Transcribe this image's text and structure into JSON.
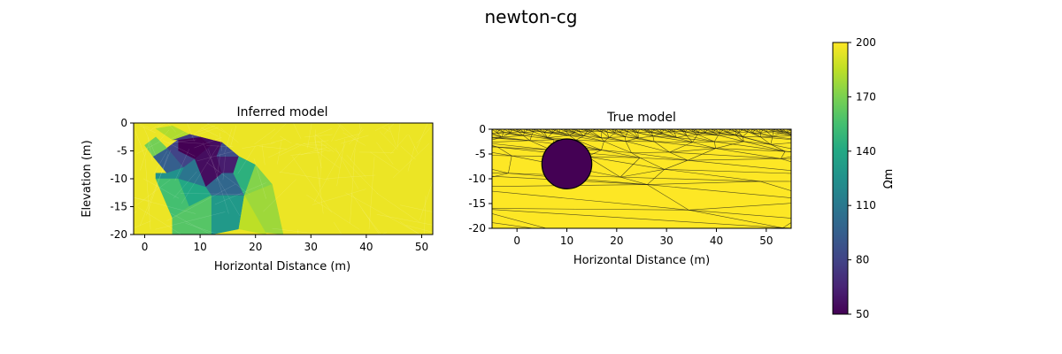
{
  "figure": {
    "suptitle": "newton-cg"
  },
  "chart_data": [
    {
      "type": "heatmap",
      "title": "Inferred model",
      "xlabel": "Horizontal Distance (m)",
      "ylabel": "Elevation (m)",
      "xlim": [
        -2,
        52
      ],
      "ylim": [
        -20,
        0
      ],
      "xticks": [
        0,
        10,
        20,
        30,
        40,
        50
      ],
      "yticks": [
        0,
        -5,
        -10,
        -15,
        -20
      ],
      "background_value": 196,
      "cells": [
        {
          "value": 50,
          "points": [
            [
              6,
              -3
            ],
            [
              10,
              -2.5
            ],
            [
              12,
              -4
            ],
            [
              9,
              -6.5
            ],
            [
              6,
              -5
            ]
          ]
        },
        {
          "value": 55,
          "points": [
            [
              10,
              -2.5
            ],
            [
              14,
              -3.5
            ],
            [
              13,
              -6
            ],
            [
              12,
              -4
            ]
          ]
        },
        {
          "value": 55,
          "points": [
            [
              9,
              -6.5
            ],
            [
              12,
              -4
            ],
            [
              13,
              -6
            ],
            [
              14,
              -9
            ],
            [
              11,
              -11.5
            ]
          ]
        },
        {
          "value": 62,
          "points": [
            [
              13,
              -6
            ],
            [
              17,
              -6
            ],
            [
              16,
              -9
            ],
            [
              14,
              -9
            ]
          ]
        },
        {
          "value": 75,
          "points": [
            [
              5,
              -3
            ],
            [
              8,
              -2
            ],
            [
              10,
              -2.5
            ],
            [
              6,
              -3
            ]
          ]
        },
        {
          "value": 80,
          "points": [
            [
              4,
              -4.5
            ],
            [
              6,
              -3
            ],
            [
              6,
              -5
            ],
            [
              9,
              -6.5
            ],
            [
              7,
              -8
            ]
          ]
        },
        {
          "value": 85,
          "points": [
            [
              14,
              -3.5
            ],
            [
              17,
              -6
            ],
            [
              13,
              -6
            ]
          ]
        },
        {
          "value": 95,
          "points": [
            [
              1.5,
              -6
            ],
            [
              4,
              -4.5
            ],
            [
              7,
              -8
            ],
            [
              4,
              -9
            ]
          ]
        },
        {
          "value": 100,
          "points": [
            [
              11,
              -11.5
            ],
            [
              14,
              -9
            ],
            [
              16,
              -9
            ],
            [
              18,
              -13
            ],
            [
              12,
              -13
            ]
          ]
        },
        {
          "value": 108,
          "points": [
            [
              7,
              -8
            ],
            [
              9,
              -6.5
            ],
            [
              11,
              -11.5
            ],
            [
              6,
              -10
            ]
          ]
        },
        {
          "value": 125,
          "points": [
            [
              2,
              -9
            ],
            [
              4,
              -9
            ],
            [
              7,
              -8
            ],
            [
              6,
              -10
            ],
            [
              2,
              -10
            ]
          ]
        },
        {
          "value": 130,
          "points": [
            [
              12,
              -13
            ],
            [
              18,
              -13
            ],
            [
              17,
              -19
            ],
            [
              12,
              -20
            ]
          ]
        },
        {
          "value": 140,
          "points": [
            [
              6,
              -10
            ],
            [
              11,
              -11.5
            ],
            [
              12,
              -13
            ],
            [
              8,
              -15
            ]
          ]
        },
        {
          "value": 145,
          "points": [
            [
              17,
              -6
            ],
            [
              20,
              -7.5
            ],
            [
              18,
              -13
            ],
            [
              16,
              -9
            ]
          ]
        },
        {
          "value": 155,
          "points": [
            [
              2,
              -10
            ],
            [
              6,
              -10
            ],
            [
              8,
              -15
            ],
            [
              5,
              -17
            ]
          ]
        },
        {
          "value": 160,
          "points": [
            [
              5,
              -17
            ],
            [
              8,
              -15
            ],
            [
              12,
              -13
            ],
            [
              12,
              -20
            ],
            [
              5,
              -20
            ]
          ]
        },
        {
          "value": 168,
          "points": [
            [
              0,
              -4
            ],
            [
              2,
              -2.5
            ],
            [
              4,
              -4.5
            ],
            [
              1.5,
              -6
            ]
          ]
        },
        {
          "value": 172,
          "points": [
            [
              20,
              -7.5
            ],
            [
              23,
              -11
            ],
            [
              18,
              -13
            ]
          ]
        },
        {
          "value": 178,
          "points": [
            [
              18,
              -13
            ],
            [
              23,
              -11
            ],
            [
              25,
              -20
            ],
            [
              17,
              -19
            ]
          ]
        },
        {
          "value": 182,
          "points": [
            [
              2,
              -1
            ],
            [
              5,
              -0.5
            ],
            [
              8,
              -2
            ],
            [
              5,
              -3
            ]
          ]
        },
        {
          "value": 185,
          "points": [
            [
              17,
              -19
            ],
            [
              18,
              -13
            ],
            [
              22,
              -20
            ]
          ]
        }
      ]
    },
    {
      "type": "heatmap",
      "title": "True model",
      "xlabel": "Horizontal Distance (m)",
      "ylabel": "",
      "xlim": [
        -5,
        55
      ],
      "ylim": [
        -20,
        0
      ],
      "xticks": [
        0,
        10,
        20,
        30,
        40,
        50
      ],
      "yticks": [
        0,
        -5,
        -10,
        -15,
        -20
      ],
      "background_value": 200,
      "anomaly": {
        "shape": "circle",
        "center": [
          10,
          -7
        ],
        "radius": 5,
        "value": 50
      }
    }
  ],
  "colorbar": {
    "label": "Ωm",
    "min": 50,
    "max": 200,
    "ticks": [
      200,
      170,
      140,
      110,
      80,
      50
    ]
  }
}
